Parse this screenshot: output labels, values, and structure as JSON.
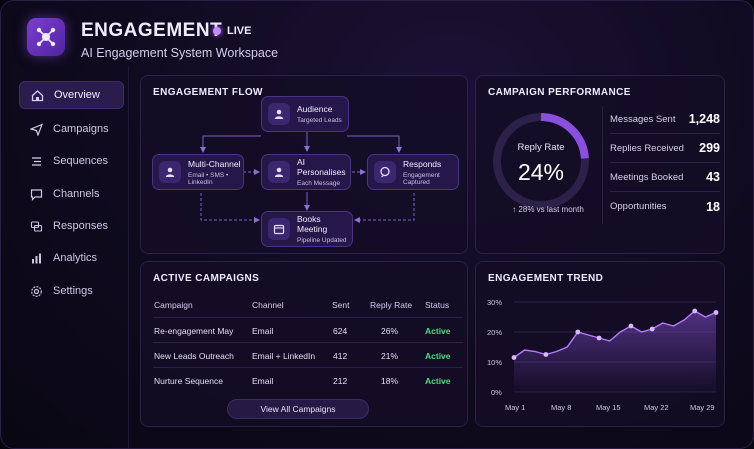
{
  "header": {
    "title": "ENGAGEMENT",
    "live_label": "LIVE",
    "subtitle": "AI Engagement System Workspace",
    "accent_color": "#8b4fe0"
  },
  "sidebar": {
    "items": [
      {
        "label": "Overview",
        "icon": "home-icon",
        "active": true
      },
      {
        "label": "Campaigns",
        "icon": "send-icon",
        "active": false
      },
      {
        "label": "Sequences",
        "icon": "sequence-icon",
        "active": false
      },
      {
        "label": "Channels",
        "icon": "chat-icon",
        "active": false
      },
      {
        "label": "Responses",
        "icon": "reply-icon",
        "active": false
      },
      {
        "label": "Analytics",
        "icon": "analytics-icon",
        "active": false
      },
      {
        "label": "Settings",
        "icon": "gear-icon",
        "active": false
      }
    ]
  },
  "flow": {
    "title": "ENGAGEMENT FLOW",
    "nodes": {
      "audience": {
        "title": "Audience",
        "sub": "Targeted Leads"
      },
      "multichannel": {
        "title": "Multi-Channel",
        "sub": "Email • SMS • LinkedIn"
      },
      "ai": {
        "title": "AI Personalises",
        "sub": "Each Message"
      },
      "responds": {
        "title": "Responds",
        "sub": "Engagement Captured"
      },
      "meeting": {
        "title": "Books Meeting",
        "sub": "Pipeline Updated"
      }
    }
  },
  "performance": {
    "title": "CAMPAIGN PERFORMANCE",
    "gauge_label": "Reply Rate",
    "gauge_value": "24%",
    "gauge_fraction": 0.24,
    "change_text": "↑ 28% vs last month",
    "metrics": [
      {
        "label": "Messages Sent",
        "value": "1,248"
      },
      {
        "label": "Replies Received",
        "value": "299"
      },
      {
        "label": "Meetings Booked",
        "value": "43"
      },
      {
        "label": "Opportunities",
        "value": "18"
      }
    ]
  },
  "campaigns": {
    "title": "ACTIVE CAMPAIGNS",
    "columns": [
      "Campaign",
      "Channel",
      "Sent",
      "Reply Rate",
      "Status"
    ],
    "rows": [
      {
        "campaign": "Re-engagement May",
        "channel": "Email",
        "sent": "624",
        "reply_rate": "26%",
        "status": "Active"
      },
      {
        "campaign": "New Leads Outreach",
        "channel": "Email + LinkedIn",
        "sent": "412",
        "reply_rate": "21%",
        "status": "Active"
      },
      {
        "campaign": "Nurture Sequence",
        "channel": "Email",
        "sent": "212",
        "reply_rate": "18%",
        "status": "Active"
      }
    ],
    "view_all_label": "View All Campaigns",
    "status_color": "#4ade80"
  },
  "chart_data": {
    "type": "area",
    "title": "ENGAGEMENT TREND",
    "x_tick_labels": [
      "May 1",
      "May 8",
      "May 15",
      "May 22",
      "May 29"
    ],
    "y_tick_labels": [
      "0%",
      "10%",
      "20%",
      "30%"
    ],
    "ylim": [
      0,
      30
    ],
    "grid": true,
    "series": [
      {
        "values": [
          11.5,
          14,
          13.5,
          12.5,
          13.5,
          15,
          20,
          19,
          18,
          17,
          20,
          22,
          20,
          21,
          23,
          22,
          24,
          27,
          25,
          26.5
        ]
      }
    ],
    "line_color": "#b57cff"
  }
}
